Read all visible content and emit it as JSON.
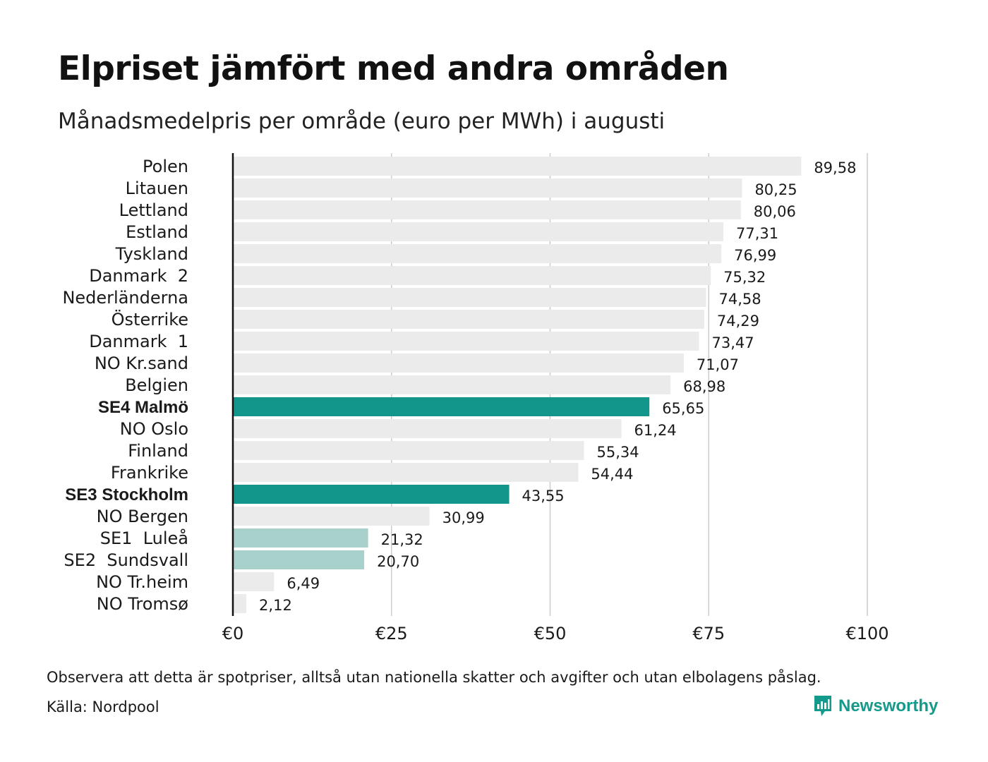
{
  "header": {
    "title": "Elpriset jämfört med andra områden",
    "subtitle": "Månadsmedelpris per område (euro per MWh) i augusti"
  },
  "chart_data": {
    "type": "bar",
    "orientation": "horizontal",
    "categories": [
      "Polen",
      "Litauen",
      "Lettland",
      "Estland",
      "Tyskland",
      "Danmark  2",
      "Nederländerna",
      "Österrike",
      "Danmark  1",
      "NO Kr.sand",
      "Belgien",
      "SE4 Malmö",
      "NO Oslo",
      "Finland",
      "Frankrike",
      "SE3 Stockholm",
      "NO Bergen",
      "SE1  Luleå",
      "SE2  Sundsvall",
      "NO Tr.heim",
      "NO Tromsø"
    ],
    "values": [
      89.58,
      80.25,
      80.06,
      77.31,
      76.99,
      75.32,
      74.58,
      74.29,
      73.47,
      71.07,
      68.98,
      65.65,
      61.24,
      55.34,
      54.44,
      43.55,
      30.99,
      21.32,
      20.7,
      6.49,
      2.12
    ],
    "value_labels": [
      "89,58",
      "80,25",
      "80,06",
      "77,31",
      "76,99",
      "75,32",
      "74,58",
      "74,29",
      "73,47",
      "71,07",
      "68,98",
      "65,65",
      "61,24",
      "55,34",
      "54,44",
      "43,55",
      "30,99",
      "21,32",
      "20,70",
      "6,49",
      "2,12"
    ],
    "highlight": [
      "none",
      "none",
      "none",
      "none",
      "none",
      "none",
      "none",
      "none",
      "none",
      "none",
      "none",
      "strong",
      "none",
      "none",
      "none",
      "strong",
      "none",
      "light",
      "light",
      "none",
      "none"
    ],
    "xlim": [
      0,
      100
    ],
    "x_ticks": [
      0,
      25,
      50,
      75,
      100
    ],
    "x_tick_labels": [
      "€0",
      "€25",
      "€50",
      "€75",
      "€100"
    ],
    "grid": "vertical",
    "colors": {
      "default": "#ebebeb",
      "strong": "#12958a",
      "light": "#a8d1cc",
      "grid": "#cccccc",
      "axis": "#111111"
    }
  },
  "footer": {
    "note": "Observera att detta är spotpriser, alltså utan nationella skatter och avgifter och utan elbolagens påslag.",
    "source": "Källa: Nordpool",
    "brand": "Newsworthy",
    "brand_icon": "newsworthy-logo-icon",
    "brand_color": "#149a8a"
  }
}
